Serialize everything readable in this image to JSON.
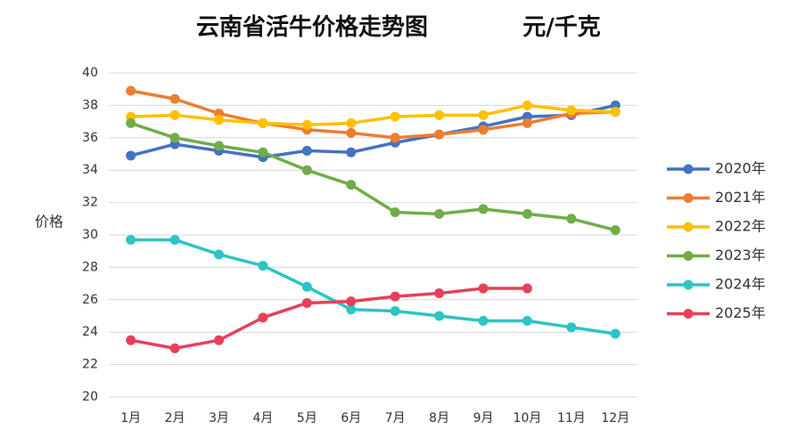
{
  "chart_data": {
    "type": "line",
    "title": "云南省活牛价格走势图",
    "subtitle": "元/千克",
    "y_label": "价格",
    "categories": [
      "1月",
      "2月",
      "3月",
      "4月",
      "5月",
      "6月",
      "7月",
      "8月",
      "9月",
      "10月",
      "11月",
      "12月"
    ],
    "series": [
      {
        "name": "2020年",
        "color": "#4472c4",
        "values": [
          34.9,
          35.6,
          35.2,
          34.8,
          35.2,
          35.1,
          35.7,
          36.2,
          36.7,
          37.3,
          37.4,
          38.0
        ]
      },
      {
        "name": "2021年",
        "color": "#ed7d31",
        "values": [
          38.9,
          38.4,
          37.5,
          36.9,
          36.5,
          36.3,
          36.0,
          36.2,
          36.5,
          36.9,
          37.5,
          37.6
        ]
      },
      {
        "name": "2022年",
        "color": "#ffc000",
        "values": [
          37.3,
          37.4,
          37.1,
          36.9,
          36.8,
          36.9,
          37.3,
          37.4,
          37.4,
          38.0,
          37.7,
          37.6
        ]
      },
      {
        "name": "2023年",
        "color": "#70ad47",
        "values": [
          36.9,
          36.0,
          35.5,
          35.1,
          34.0,
          33.1,
          31.4,
          31.3,
          31.6,
          31.3,
          31.0,
          30.3
        ]
      },
      {
        "name": "2024年",
        "color": "#2ec4c4",
        "values": [
          29.7,
          29.7,
          28.8,
          28.1,
          26.8,
          25.4,
          25.3,
          25.0,
          24.7,
          24.7,
          24.3,
          23.9
        ]
      },
      {
        "name": "2025年",
        "color": "#e8405a",
        "values": [
          23.5,
          23.0,
          23.5,
          24.9,
          25.8,
          25.9,
          26.2,
          26.4,
          26.7,
          26.7,
          null,
          null
        ]
      }
    ],
    "ylim": [
      20,
      40
    ],
    "yticks": [
      20,
      22,
      24,
      26,
      28,
      30,
      32,
      34,
      36,
      38,
      40
    ],
    "grid": true,
    "legend": "right"
  }
}
